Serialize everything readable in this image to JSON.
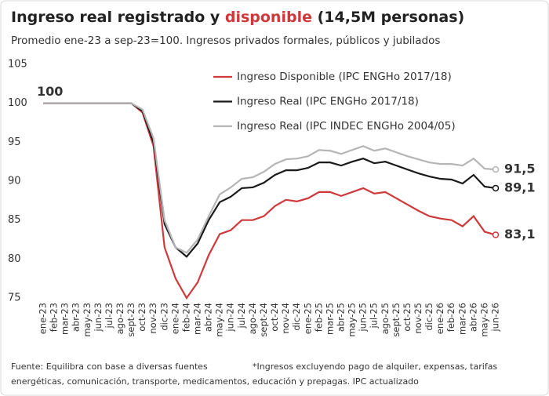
{
  "chart_data": {
    "type": "line",
    "title": [
      "Ingreso real registrado y ",
      "disponible",
      " (14,5M personas)"
    ],
    "title_colors": [
      "#222222",
      "#d0393b",
      "#222222"
    ],
    "subtitle": "Promedio ene-23 a sep-23=100. Ingresos privados formales, públicos y jubilados",
    "annotations": [
      "100"
    ],
    "footer": [
      "Fuente: Equilibra con base a diversas fuentes",
      "*Ingresos excluyendo pago de alquiler, expensas, tarifas",
      "energéticas, comunicación, transporte, medicamentos, educación y prepagas. IPC actualizado"
    ],
    "categories": [
      "ene-23",
      "feb-23",
      "mar-23",
      "abr-23",
      "may-23",
      "jun-23",
      "jul-23",
      "ago-23",
      "sept-23",
      "oct-23",
      "nov-23",
      "dic-23",
      "ene-24",
      "feb-24",
      "mar-24",
      "abr-24",
      "may-24",
      "jun-24",
      "jul-24",
      "ago-24",
      "sept-24",
      "oct-24",
      "nov-24",
      "dic-24",
      "ene-25",
      "feb-25",
      "mar-25",
      "abr-25",
      "may-25",
      "jun-25",
      "jul-25",
      "ago-25",
      "sept-25",
      "oct-25",
      "nov-25",
      "dic-25",
      "ene-26",
      "feb-26",
      "mar-26",
      "abr-26",
      "may-26",
      "jun-26"
    ],
    "series": [
      {
        "name": "Ingreso Disponible (IPC ENGHo 2017/18)",
        "color": "#d0393b",
        "values": [
          100,
          100,
          100,
          100,
          100,
          100,
          100,
          100,
          100,
          98.8,
          94.5,
          81.5,
          77.5,
          75,
          77,
          80.5,
          83.2,
          83.7,
          85,
          85,
          85.5,
          86.8,
          87.6,
          87.4,
          87.8,
          88.6,
          88.6,
          88.1,
          88.6,
          89.1,
          88.4,
          88.6,
          87.8,
          87,
          86.2,
          85.5,
          85.2,
          85,
          84.2,
          85.5,
          83.5,
          83.1
        ],
        "value_labels": [
          null,
          null,
          null,
          null,
          null,
          null,
          null,
          null,
          null,
          null,
          null,
          null,
          null,
          null,
          null,
          null,
          null,
          null,
          null,
          null,
          null,
          null,
          null,
          null,
          null,
          null,
          null,
          null,
          null,
          null,
          null,
          null,
          null,
          null,
          null,
          null,
          null,
          null,
          null,
          null,
          null,
          "83,1"
        ]
      },
      {
        "name": "Ingreso Real (IPC ENGHo 2017/18)",
        "color": "#1a1a1a",
        "values": [
          100,
          100,
          100,
          100,
          100,
          100,
          100,
          100,
          100,
          99,
          95,
          84.5,
          81.5,
          80.3,
          82,
          85,
          87.3,
          88,
          89.1,
          89.2,
          89.8,
          90.8,
          91.4,
          91.4,
          91.7,
          92.4,
          92.4,
          92,
          92.5,
          92.9,
          92.3,
          92.5,
          92,
          91.5,
          91,
          90.6,
          90.3,
          90.2,
          89.7,
          90.8,
          89.3,
          89.1
        ],
        "value_labels": [
          null,
          null,
          null,
          null,
          null,
          null,
          null,
          null,
          null,
          null,
          null,
          null,
          null,
          null,
          null,
          null,
          null,
          null,
          null,
          null,
          null,
          null,
          null,
          null,
          null,
          null,
          null,
          null,
          null,
          null,
          null,
          null,
          null,
          null,
          null,
          null,
          null,
          null,
          null,
          null,
          null,
          "89,1"
        ]
      },
      {
        "name": "Ingreso Real (IPC INDEC ENGHo 2004/05)",
        "color": "#b5b5b5",
        "values": [
          100,
          100,
          100,
          100,
          100,
          100,
          100,
          100,
          100,
          99.2,
          95.5,
          85,
          81.5,
          80.8,
          82.5,
          85.5,
          88.3,
          89.2,
          90.3,
          90.5,
          91.2,
          92.2,
          92.8,
          92.9,
          93.2,
          94,
          93.9,
          93.5,
          94,
          94.5,
          93.9,
          94.2,
          93.7,
          93.2,
          92.8,
          92.4,
          92.2,
          92.2,
          92,
          92.9,
          91.6,
          91.5
        ],
        "value_labels": [
          null,
          null,
          null,
          null,
          null,
          null,
          null,
          null,
          null,
          null,
          null,
          null,
          null,
          null,
          null,
          null,
          null,
          null,
          null,
          null,
          null,
          null,
          null,
          null,
          null,
          null,
          null,
          null,
          null,
          null,
          null,
          null,
          null,
          null,
          null,
          null,
          null,
          null,
          null,
          null,
          null,
          "91,5"
        ]
      }
    ],
    "ylim": [
      75,
      105
    ],
    "yticks": [
      75,
      80,
      85,
      90,
      95,
      100,
      105
    ],
    "grid": false,
    "legend": "top"
  }
}
